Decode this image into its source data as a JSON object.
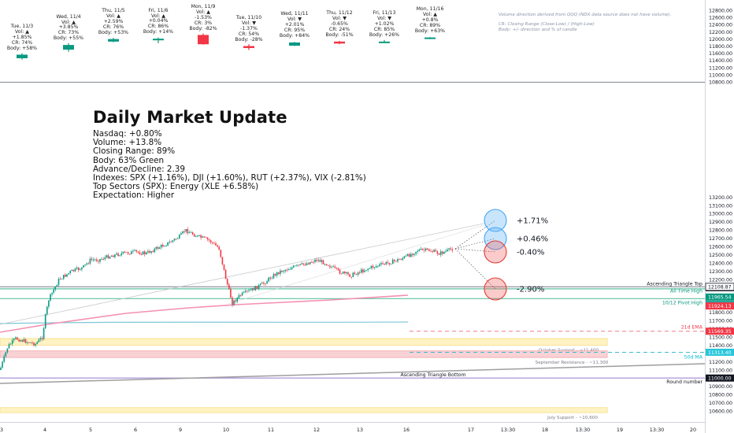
{
  "colors": {
    "up": "#089981",
    "down": "#f23645",
    "up_line": "#2a8f75",
    "down_line": "#e0303f",
    "neutral": "#787b86"
  },
  "update": {
    "title": "Daily Market Update",
    "lines": [
      "Nasdaq: +0.80%",
      "Volume: +13.8%",
      "Closing Range: 89%",
      "Body: 63% Green",
      "Advance/Decline: 2.39",
      "Indexes: SPX (+1.16%), DJI (+1.60%), RUT (+2.37%), VIX (-2.81%)",
      "Top Sectors (SPX): Energy (XLE +6.58%)",
      "Expectation: Higher"
    ]
  },
  "notes": [
    "Volume direction derived from QQQ (NDX data source does not have volume).",
    "CR: Closing Range (Close-Low) / (High-Low)",
    "Body: +/- direction and % of candle"
  ],
  "chart_data": [
    {
      "type": "bar",
      "title": "",
      "categories": [
        "Tue, 11/3",
        "Wed, 11/4",
        "Thu, 11/5",
        "Fri, 11/6",
        "Mon, 11/9",
        "Tue, 11/10",
        "Wed, 11/11",
        "Thu, 11/12",
        "Fri, 11/13",
        "Mon, 11/16"
      ],
      "candles": [
        {
          "label": "Tue, 11/3",
          "vol": "Vol: ▲",
          "chg": "+1.85%",
          "cr": "CR: 74%",
          "body": "Body: +58%",
          "dir": "up",
          "open": 11460,
          "close": 11560,
          "high": 11600,
          "low": 11420
        },
        {
          "label": "Wed, 11/4",
          "vol": "Vol: ▲",
          "chg": "+3.85%",
          "cr": "CR: 73%",
          "body": "Body: +55%",
          "dir": "up",
          "open": 11700,
          "close": 11830,
          "high": 11880,
          "low": 11640
        },
        {
          "label": "Thu, 11/5",
          "vol": "Vol: ▲",
          "chg": "+2.59%",
          "cr": "CR: 76%",
          "body": "Body: +53%",
          "dir": "up",
          "open": 11925,
          "close": 11995,
          "high": 12030,
          "low": 11905
        },
        {
          "label": "Fri, 11/6",
          "vol": "Vol: ▲",
          "chg": "+0.04%",
          "cr": "CR: 86%",
          "body": "Body: +14%",
          "dir": "up",
          "open": 11985,
          "close": 12005,
          "high": 12040,
          "low": 11880
        },
        {
          "label": "Mon, 11/9",
          "vol": "Vol: ▲",
          "chg": "-1.53%",
          "cr": "CR: 3%",
          "body": "Body: -82%",
          "dir": "down",
          "open": 12110,
          "close": 11850,
          "high": 12150,
          "low": 11840
        },
        {
          "label": "Tue, 11/10",
          "vol": "Vol: ▼",
          "chg": "-1.37%",
          "cr": "CR: 54%",
          "body": "Body: -28%",
          "dir": "down",
          "open": 11800,
          "close": 11745,
          "high": 11850,
          "low": 11690
        },
        {
          "label": "Wed, 11/11",
          "vol": "Vol: ▼",
          "chg": "+2.01%",
          "cr": "CR: 95%",
          "body": "Body: +84%",
          "dir": "up",
          "open": 11810,
          "close": 11900,
          "high": 11915,
          "low": 11800
        },
        {
          "label": "Thu, 11/12",
          "vol": "Vol: ▼",
          "chg": "-0.65%",
          "cr": "CR: 24%",
          "body": "Body: -51%",
          "dir": "down",
          "open": 11925,
          "close": 11870,
          "high": 11945,
          "low": 11850
        },
        {
          "label": "Fri, 11/13",
          "vol": "Vol: ▼",
          "chg": "+1.02%",
          "cr": "CR: 85%",
          "body": "Body: +26%",
          "dir": "up",
          "open": 11905,
          "close": 11925,
          "high": 11970,
          "low": 11890
        },
        {
          "label": "Mon, 11/16",
          "vol": "Vol: ▲",
          "chg": "+0.8%",
          "cr": "CR: 89%",
          "body": "Body: +63%",
          "dir": "up",
          "open": 12005,
          "close": 12040,
          "high": 12050,
          "low": 11995
        }
      ],
      "ylim": [
        10800,
        12800
      ],
      "yticks": [
        10800,
        11000,
        11200,
        11400,
        11600,
        11800,
        12000,
        12200,
        12400,
        12600,
        12800
      ]
    },
    {
      "type": "line",
      "title": "",
      "xtick_labels": [
        "3",
        "4",
        "5",
        "6",
        "9",
        "10",
        "11",
        "12",
        "13",
        "16",
        "17",
        "13:30",
        "18",
        "13:30",
        "19",
        "13:30",
        "20"
      ],
      "ylim": [
        10500,
        13250
      ],
      "yticks": [
        10600,
        10700,
        10800,
        10900,
        11000,
        11100,
        11200,
        11300,
        11400,
        11500,
        11600,
        11700,
        11800,
        11900,
        12000,
        12100,
        12200,
        12300,
        12400,
        12500,
        12600,
        12700,
        12800,
        12900,
        13000,
        13100,
        13200
      ],
      "grid": false,
      "levels": [
        {
          "name": "Ascending Triangle Top",
          "value": 12108.87,
          "color": "#2a2e39"
        },
        {
          "name": "All Time High",
          "value": 12098.6,
          "color": "#089981",
          "tag": "12098.60",
          "tag_bg": "#131722"
        },
        {
          "name": "10/12 Pivot High",
          "value": 11965.54,
          "color": "#089981",
          "tag": "11965.54",
          "tag_bg": "#089981"
        },
        {
          "name": "",
          "value": 11925.72,
          "color": "#089981",
          "tag": "11925.72",
          "tag_bg": "#26a69a"
        },
        {
          "name": "",
          "value": 11924.13,
          "color": "#f23645",
          "tag": "11924.13",
          "tag_bg": "#f23645"
        },
        {
          "name": "21d EMA",
          "value": 11569.35,
          "color": "#f23645",
          "tag": "11569.35",
          "tag_bg": "#f23645"
        },
        {
          "name": "50d MA",
          "value": 11313.4,
          "color": "#26c6da",
          "tag": "11313.40",
          "tag_bg": "#26c6da"
        },
        {
          "name": "Round number",
          "value": 11000.0,
          "color": "#7e57c2",
          "tag": "11000.00",
          "tag_bg": "#131722"
        }
      ],
      "zones": [
        {
          "name": "October Support - ~11,400",
          "low": 11400,
          "high": 11480,
          "color": "#fff3c4"
        },
        {
          "name": "September Resistance - ~11,300",
          "low": 11250,
          "high": 11330,
          "color": "#f9d2d5"
        },
        {
          "name": "July Support - ~10,600",
          "low": 10580,
          "high": 10640,
          "color": "#fff3c4"
        }
      ],
      "trendlines": [
        {
          "name": "Ascending Triangle Bottom"
        }
      ],
      "projections": [
        {
          "label": "+1.71%",
          "value": 12134
        },
        {
          "label": "+0.46%",
          "value": 12011
        },
        {
          "label": "-0.40%",
          "value": 11924
        },
        {
          "label": "-2.90%",
          "value": 11570
        }
      ]
    }
  ]
}
